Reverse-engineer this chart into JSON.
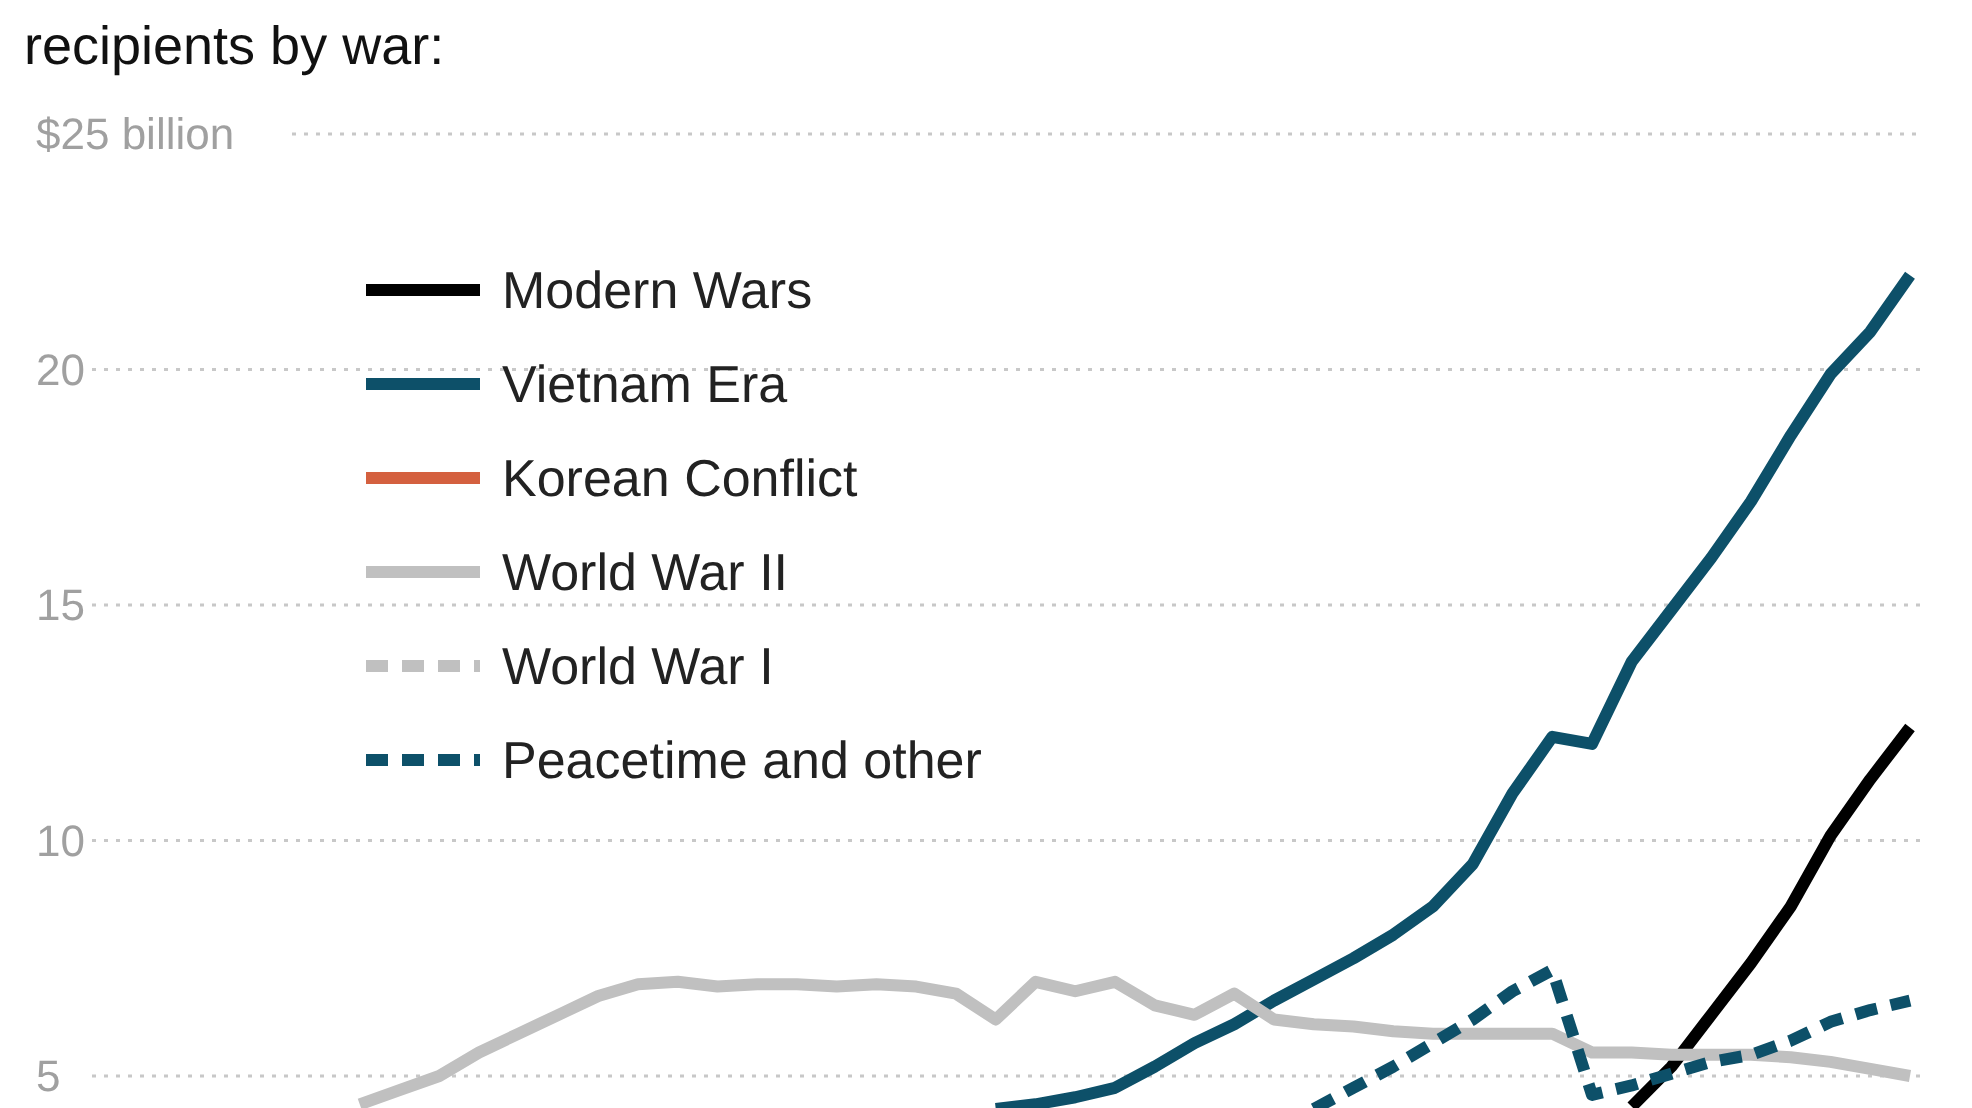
{
  "chart_data": {
    "type": "line",
    "title": "recipients by war:",
    "categories": [
      null,
      null,
      null,
      null,
      null,
      null,
      null,
      null,
      null,
      null,
      null,
      null,
      null,
      null,
      null,
      null,
      null,
      null,
      null,
      null,
      null,
      null,
      null,
      null,
      null,
      null,
      null,
      null,
      null,
      null,
      null,
      null,
      null,
      null,
      null,
      null,
      null,
      null,
      null,
      null,
      null
    ],
    "series": [
      {
        "name": "Modern Wars",
        "color": "#000000",
        "line_style": "solid",
        "values": [
          null,
          null,
          null,
          null,
          null,
          null,
          null,
          null,
          null,
          null,
          null,
          null,
          null,
          null,
          null,
          null,
          null,
          null,
          null,
          null,
          null,
          null,
          null,
          null,
          null,
          null,
          null,
          null,
          null,
          null,
          null,
          null,
          null,
          4.35,
          5.2,
          6.3,
          7.4,
          8.6,
          10.1,
          11.3,
          12.4
        ]
      },
      {
        "name": "Vietnam Era",
        "color": "#0d5069",
        "line_style": "solid",
        "values": [
          null,
          null,
          null,
          null,
          null,
          null,
          null,
          null,
          null,
          null,
          null,
          null,
          null,
          null,
          null,
          null,
          null,
          4.3,
          4.4,
          4.55,
          4.75,
          5.2,
          5.7,
          6.1,
          6.6,
          7.05,
          7.5,
          8.0,
          8.6,
          9.5,
          11.0,
          12.2,
          12.05,
          13.8,
          14.9,
          16.0,
          17.2,
          18.6,
          19.9,
          20.8,
          22.0
        ]
      },
      {
        "name": "Korean Conflict",
        "color": "#d4603f",
        "line_style": "solid",
        "values": [
          null,
          null,
          null,
          null,
          null,
          null,
          null,
          null,
          null,
          null,
          null,
          null,
          null,
          null,
          null,
          null,
          null,
          null,
          null,
          null,
          null,
          null,
          null,
          null,
          null,
          null,
          null,
          null,
          null,
          null,
          null,
          null,
          null,
          null,
          null,
          null,
          null,
          null,
          null,
          null,
          null
        ]
      },
      {
        "name": "World War II",
        "color": "#c0c0c0",
        "line_style": "solid",
        "values": [
          null,
          4.4,
          4.7,
          5.0,
          5.5,
          5.9,
          6.3,
          6.7,
          6.95,
          7.0,
          6.9,
          6.95,
          6.95,
          6.9,
          6.95,
          6.9,
          6.75,
          6.2,
          7.0,
          6.8,
          7.0,
          6.5,
          6.3,
          6.75,
          6.2,
          6.1,
          6.05,
          5.95,
          5.9,
          5.9,
          5.9,
          5.9,
          5.5,
          5.5,
          5.45,
          5.45,
          5.45,
          5.4,
          5.3,
          5.15,
          5.0
        ]
      },
      {
        "name": "World War I",
        "color": "#c0c0c0",
        "line_style": "dashed",
        "values": [
          null,
          null,
          null,
          null,
          null,
          null,
          null,
          null,
          null,
          null,
          null,
          null,
          null,
          null,
          null,
          null,
          null,
          null,
          null,
          null,
          null,
          null,
          null,
          null,
          null,
          null,
          null,
          null,
          null,
          null,
          null,
          null,
          null,
          null,
          null,
          null,
          null,
          null,
          null,
          null,
          null
        ]
      },
      {
        "name": "Peacetime and other",
        "color": "#0d5069",
        "line_style": "dashed",
        "values": [
          null,
          null,
          null,
          null,
          null,
          null,
          null,
          null,
          null,
          null,
          null,
          null,
          null,
          null,
          null,
          null,
          null,
          null,
          null,
          null,
          null,
          null,
          null,
          null,
          null,
          4.3,
          4.75,
          5.2,
          5.7,
          6.2,
          6.8,
          7.25,
          4.6,
          4.8,
          5.05,
          5.3,
          5.45,
          5.75,
          6.15,
          6.4,
          6.6
        ]
      }
    ],
    "ylim": [
      4.3,
      25
    ],
    "yticks": [
      {
        "value": 25,
        "label": "$25 billion"
      },
      20,
      15,
      10,
      5
    ],
    "grid": "y",
    "legend": "top left",
    "tick_labels": "y"
  }
}
